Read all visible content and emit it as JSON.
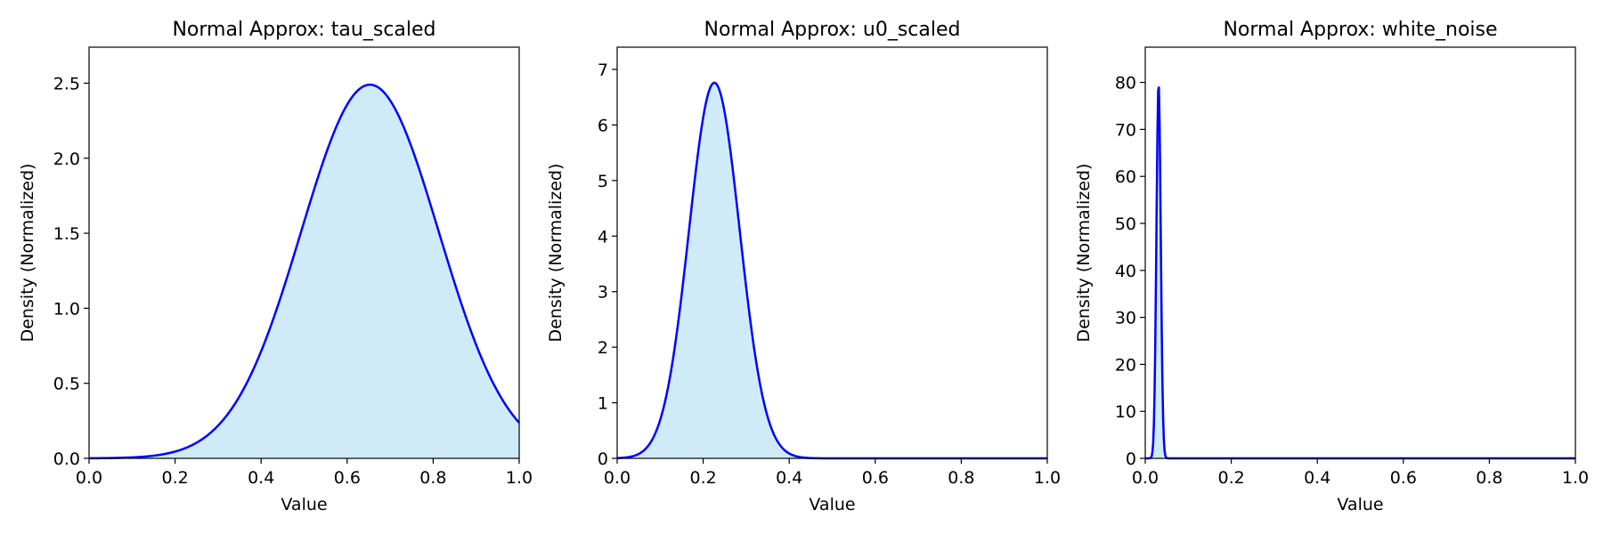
{
  "figure": {
    "colors": {
      "line": "#0000ff",
      "fill": "#87ceeb",
      "fill_opacity": 0.4,
      "axes": "#000000"
    }
  },
  "chart_data": [
    {
      "type": "area",
      "title": "Normal Approx: tau_scaled",
      "xlabel": "Value",
      "ylabel": "Density (Normalized)",
      "xlim": [
        0,
        1
      ],
      "ylim": [
        0,
        2.74
      ],
      "xticks": [
        "0.0",
        "0.2",
        "0.4",
        "0.6",
        "0.8",
        "1.0"
      ],
      "xtick_values": [
        0,
        0.2,
        0.4,
        0.6,
        0.8,
        1.0
      ],
      "yticks": [
        "0.0",
        "0.5",
        "1.0",
        "1.5",
        "2.0",
        "2.5"
      ],
      "ytick_values": [
        0,
        0.5,
        1.0,
        1.5,
        2.0,
        2.5
      ],
      "grid": false,
      "filled": true,
      "distribution": {
        "kind": "normal",
        "mean": 0.653,
        "sd": 0.16,
        "peak_density": 2.49
      }
    },
    {
      "type": "area",
      "title": "Normal Approx: u0_scaled",
      "xlabel": "Value",
      "ylabel": "Density (Normalized)",
      "xlim": [
        0,
        1
      ],
      "ylim": [
        0,
        7.4
      ],
      "xticks": [
        "0.0",
        "0.2",
        "0.4",
        "0.6",
        "0.8",
        "1.0"
      ],
      "xtick_values": [
        0,
        0.2,
        0.4,
        0.6,
        0.8,
        1.0
      ],
      "yticks": [
        "0",
        "1",
        "2",
        "3",
        "4",
        "5",
        "6",
        "7"
      ],
      "ytick_values": [
        0,
        1,
        2,
        3,
        4,
        5,
        6,
        7
      ],
      "grid": false,
      "filled": true,
      "distribution": {
        "kind": "normal",
        "mean": 0.226,
        "sd": 0.059,
        "peak_density": 6.76
      }
    },
    {
      "type": "area",
      "title": "Normal Approx: white_noise",
      "xlabel": "Value",
      "ylabel": "Density (Normalized)",
      "xlim": [
        0,
        1
      ],
      "ylim": [
        0,
        87.5
      ],
      "xticks": [
        "0.0",
        "0.2",
        "0.4",
        "0.6",
        "0.8",
        "1.0"
      ],
      "xtick_values": [
        0,
        0.2,
        0.4,
        0.6,
        0.8,
        1.0
      ],
      "yticks": [
        "0",
        "10",
        "20",
        "30",
        "40",
        "50",
        "60",
        "70",
        "80"
      ],
      "ytick_values": [
        0,
        10,
        20,
        30,
        40,
        50,
        60,
        70,
        80
      ],
      "grid": false,
      "filled": true,
      "distribution": {
        "kind": "normal",
        "mean": 0.031,
        "sd": 0.005,
        "peak_density": 79.8
      }
    }
  ]
}
